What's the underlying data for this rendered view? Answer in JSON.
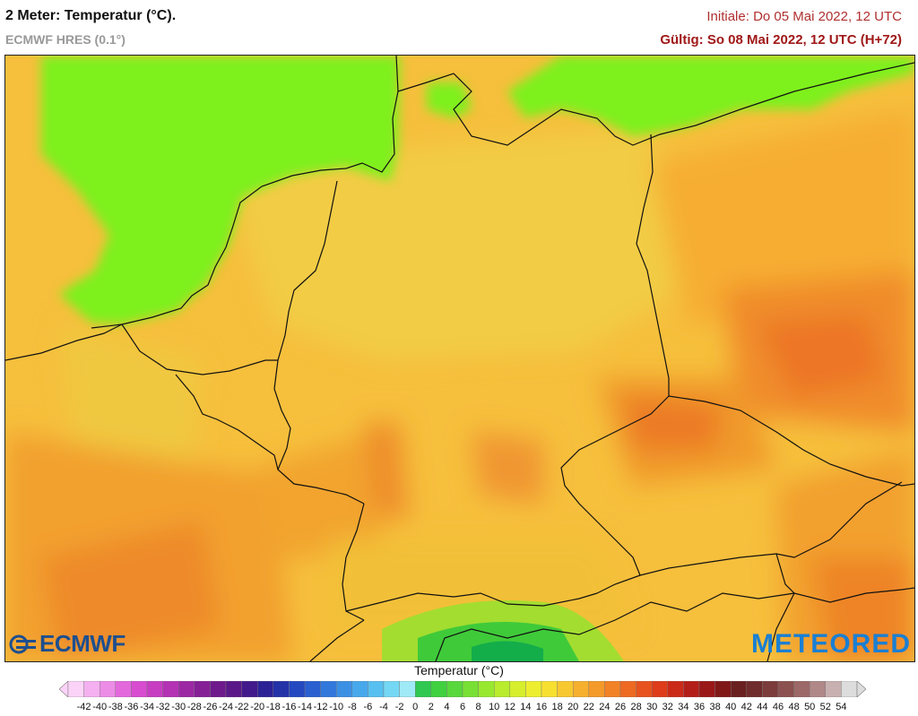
{
  "header": {
    "title": "2 Meter: Temperatur (°C).",
    "model": "ECMWF HRES (0.1°)",
    "init": "Initiale: Do 05 Mai 2022, 12 UTC",
    "valid": "Gültig: So 08 Mai 2022, 12 UTC (H+72)"
  },
  "logos": {
    "left": "ECMWF",
    "right": "METEORED",
    "left_color": "#1d4f8f",
    "right_color": "#1a7fd3"
  },
  "legend": {
    "title": "Temperatur (°C)",
    "ticks": [
      "-42",
      "-40",
      "-38",
      "-36",
      "-34",
      "-32",
      "-30",
      "-28",
      "-26",
      "-24",
      "-22",
      "-20",
      "-18",
      "-16",
      "-14",
      "-12",
      "-10",
      "-8",
      "-6",
      "-4",
      "-2",
      "0",
      "2",
      "4",
      "6",
      "8",
      "10",
      "12",
      "14",
      "16",
      "18",
      "20",
      "22",
      "24",
      "26",
      "28",
      "30",
      "32",
      "34",
      "36",
      "38",
      "40",
      "42",
      "44",
      "46",
      "48",
      "50",
      "52",
      "54"
    ],
    "colors": [
      "#fbd3f8",
      "#f4b0f0",
      "#ec8ce6",
      "#e368dc",
      "#d84cd0",
      "#c73ec2",
      "#b432b4",
      "#9c28a4",
      "#852096",
      "#6e1a8c",
      "#5a1888",
      "#421a8c",
      "#2c2296",
      "#2432a8",
      "#2448c0",
      "#2a60d0",
      "#3278dc",
      "#3c90e4",
      "#48a8ec",
      "#58c0f0",
      "#74d8f4",
      "#a0eaf8",
      "#30c850",
      "#40d040",
      "#58d83c",
      "#78e034",
      "#98e830",
      "#b8ec2c",
      "#d6ee2c",
      "#eeee30",
      "#f8e030",
      "#f8c830",
      "#f6b02e",
      "#f49a2a",
      "#f28226",
      "#ee6a22",
      "#e8521e",
      "#de3c1a",
      "#cc2a18",
      "#b41e18",
      "#9a1818",
      "#801818",
      "#6a2020",
      "#702c2c",
      "#7c3c3c",
      "#8c5050",
      "#9c6868",
      "#b08888",
      "#c8b0b0",
      "#dddddd"
    ]
  }
}
